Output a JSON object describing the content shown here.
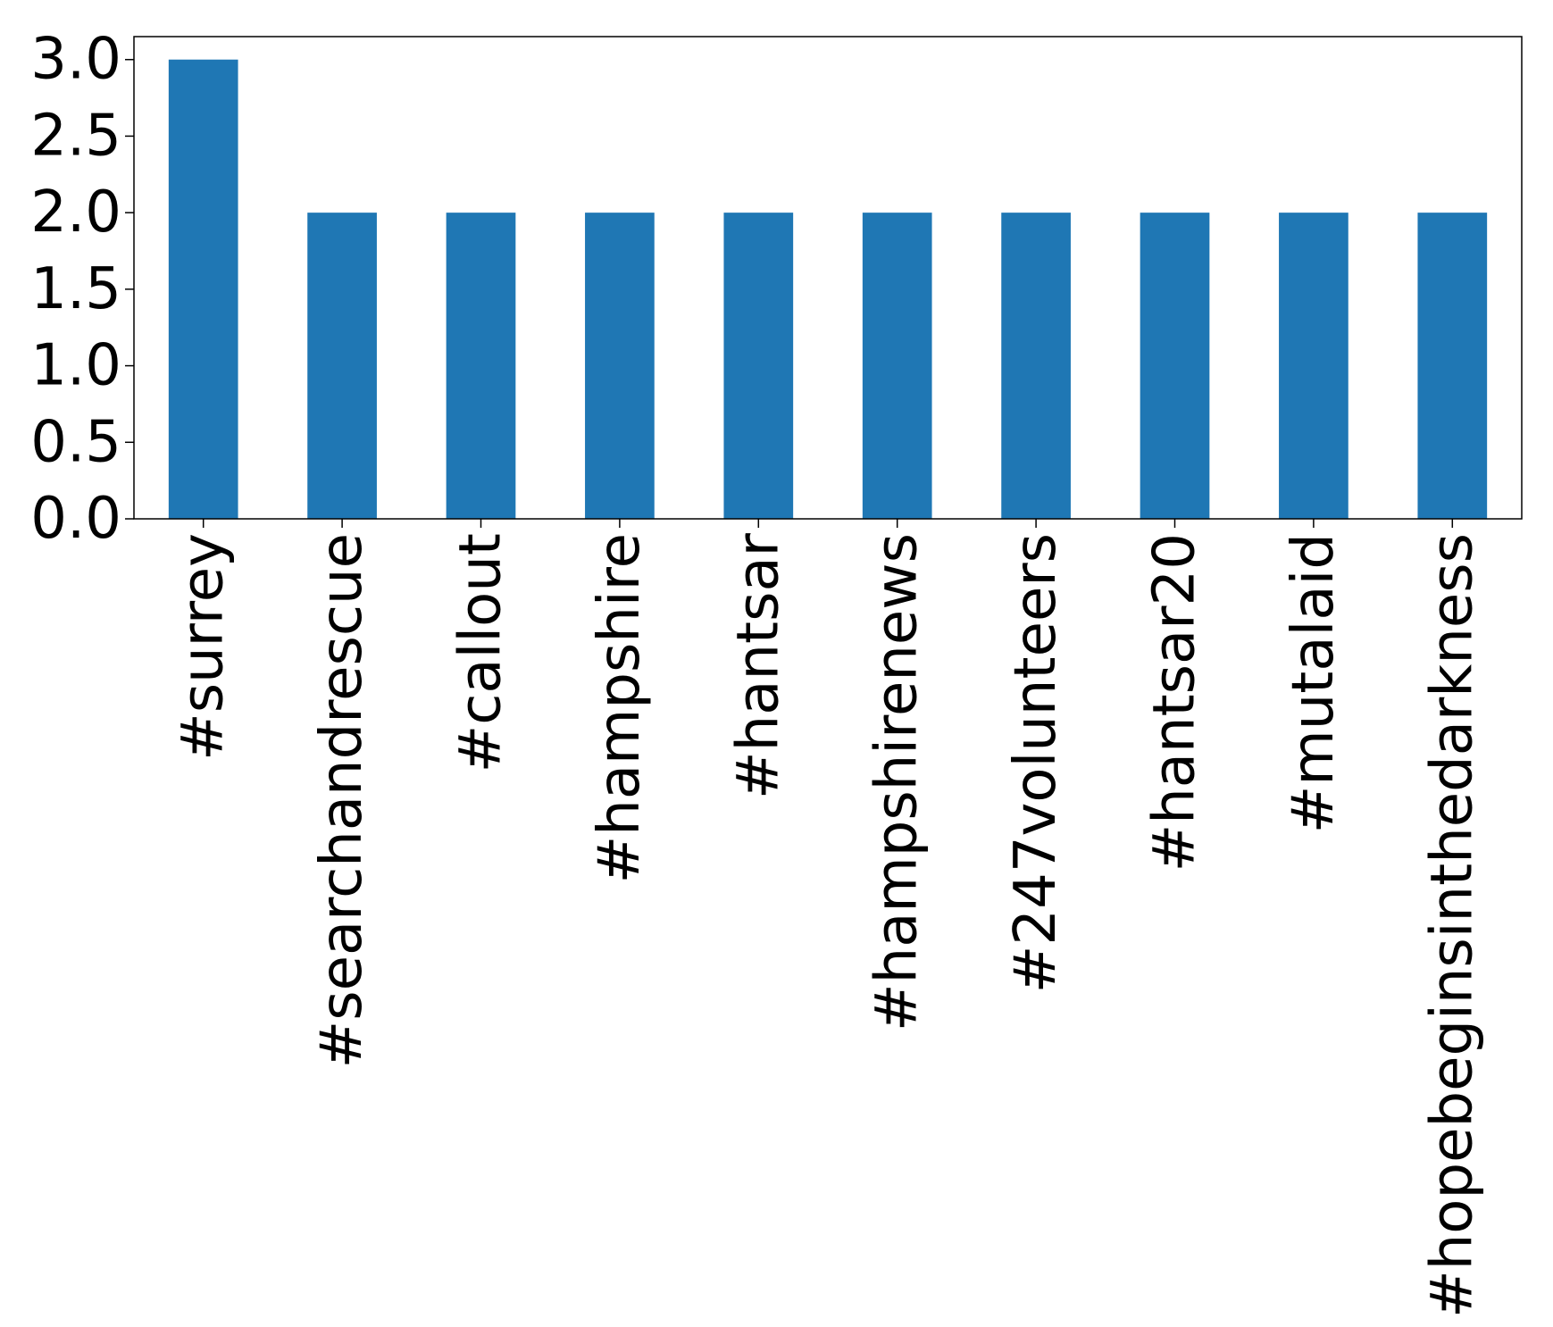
{
  "chart_data": {
    "type": "bar",
    "title": "",
    "xlabel": "",
    "ylabel": "",
    "categories": [
      "#surrey",
      "#searchandrescue",
      "#callout",
      "#hampshire",
      "#hantsar",
      "#hampshirenews",
      "#247volunteers",
      "#hantsar20",
      "#mutalaid",
      "#hopebeginsinthedarkness"
    ],
    "values": [
      3,
      2,
      2,
      2,
      2,
      2,
      2,
      2,
      2,
      2
    ],
    "ylim": [
      0,
      3.15
    ],
    "yticks": [
      "0.0",
      "0.5",
      "1.0",
      "1.5",
      "2.0",
      "2.5",
      "3.0"
    ],
    "grid": false,
    "legend": "none",
    "bar_color": "#1f77b4"
  }
}
